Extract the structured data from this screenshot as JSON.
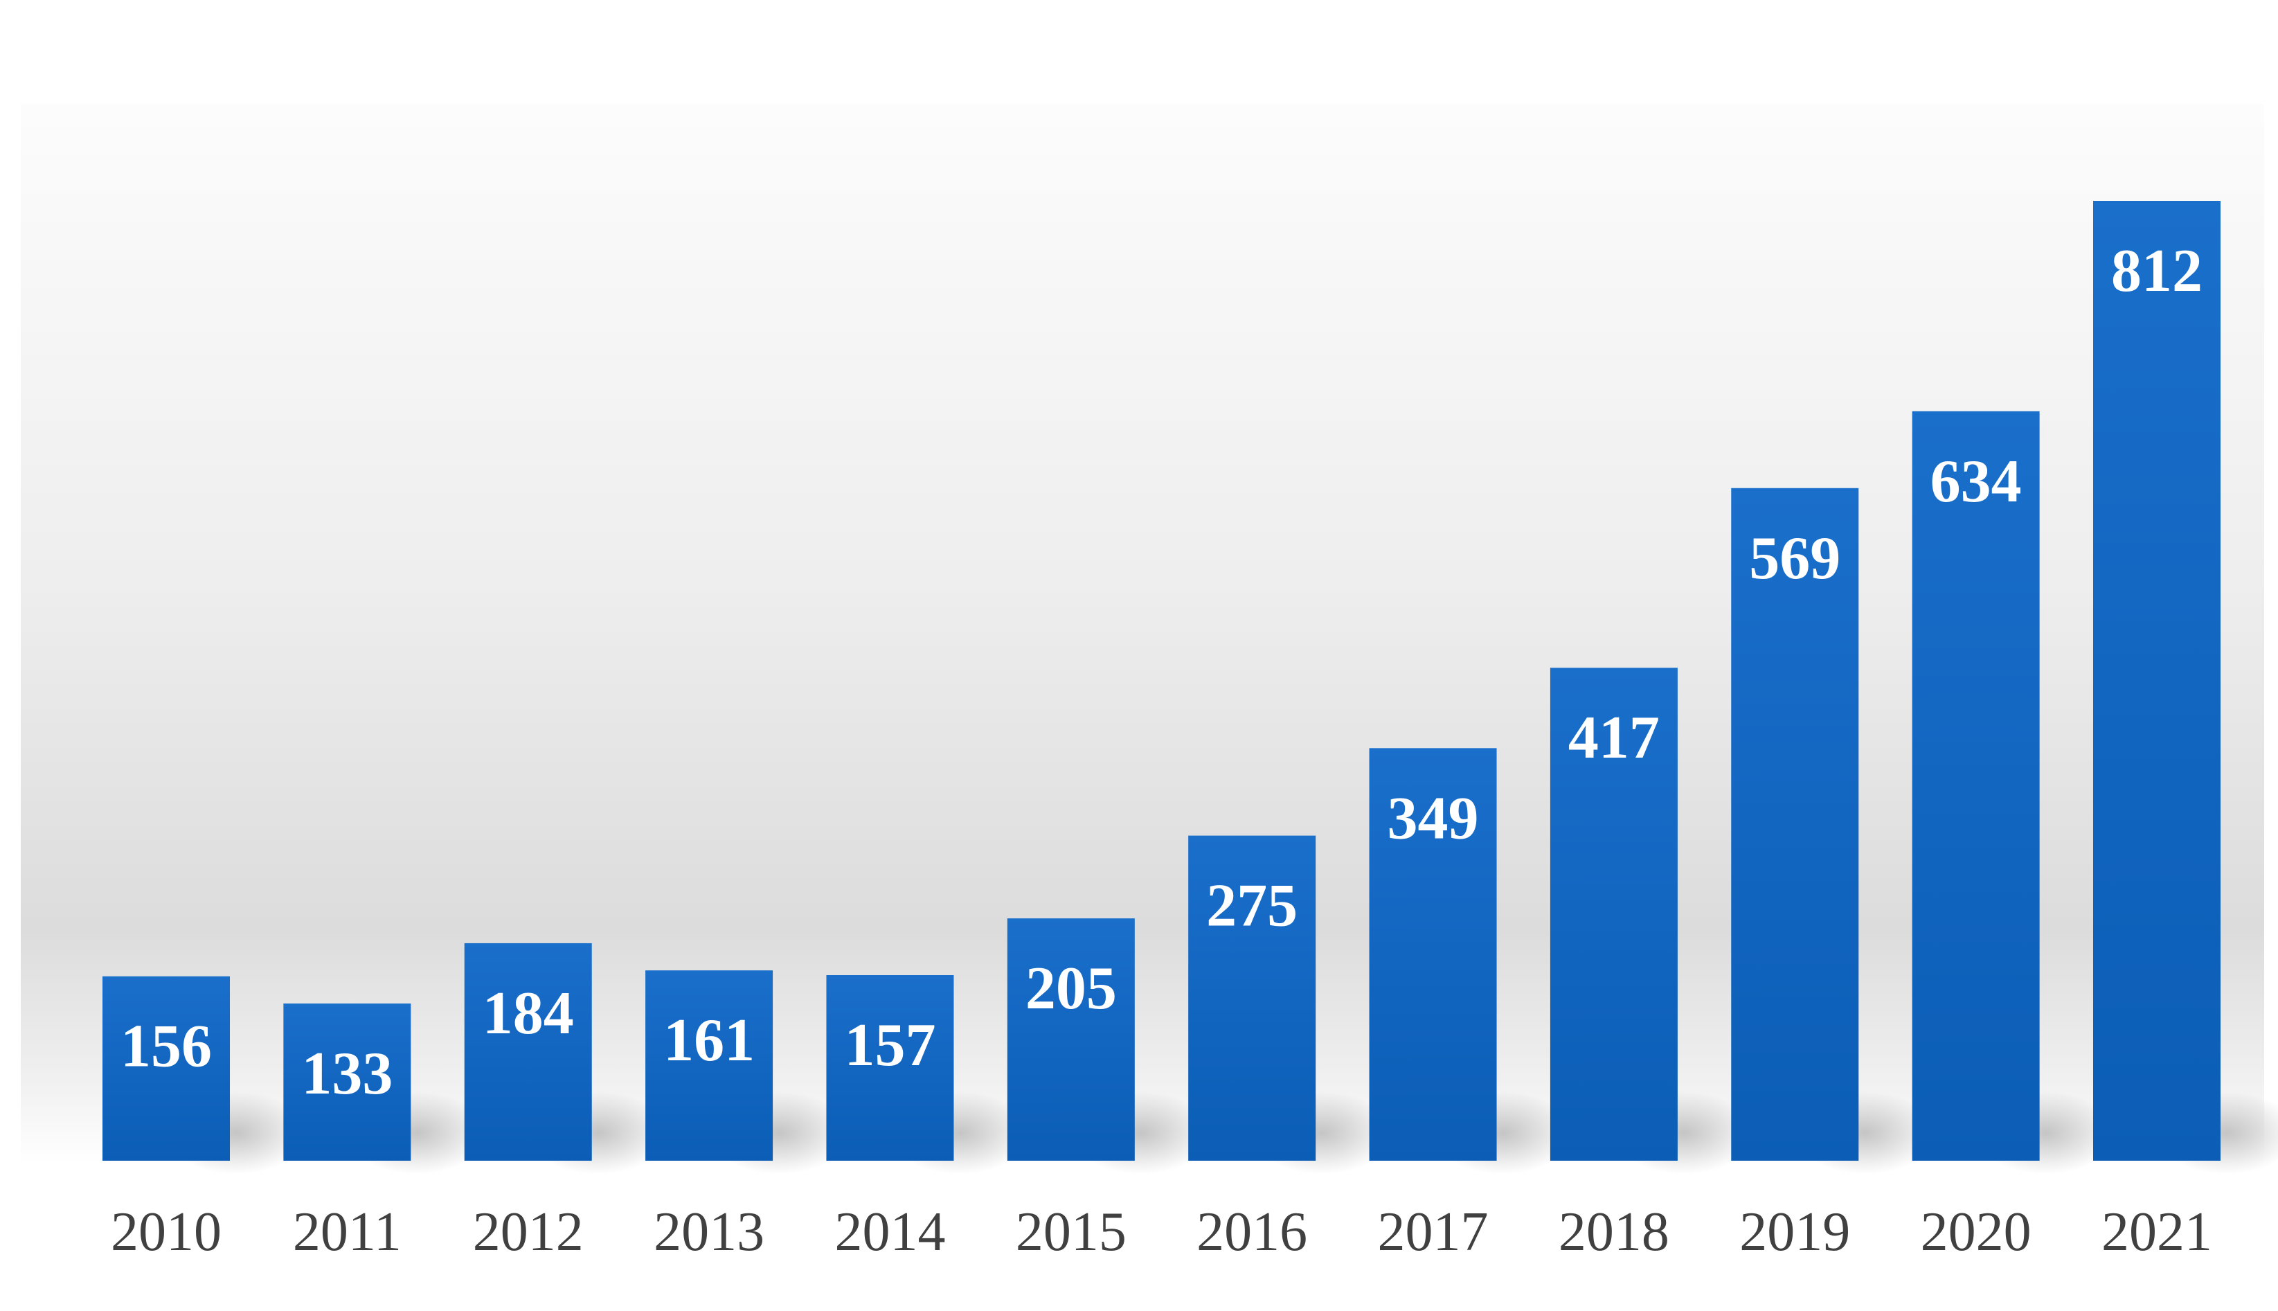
{
  "chart_data": {
    "type": "bar",
    "categories": [
      "2010",
      "2011",
      "2012",
      "2013",
      "2014",
      "2015",
      "2016",
      "2017",
      "2018",
      "2019",
      "2020",
      "2021"
    ],
    "values": [
      156,
      133,
      184,
      161,
      157,
      205,
      275,
      349,
      417,
      569,
      634,
      812
    ],
    "value_labels": [
      "156",
      "133",
      "184",
      "161",
      "157",
      "205",
      "275",
      "349",
      "417",
      "569",
      "634",
      "812"
    ],
    "ylim": [
      0,
      812
    ],
    "grid": false,
    "legend": "none",
    "data_labels": "inside-top"
  },
  "colors": {
    "bar_top": "#1a6fcb",
    "bar_bottom": "#0b5db5",
    "background_top": "#fcfcfc",
    "background_mid": "#dcdcdc",
    "value_label": "#ffffff",
    "category_label": "#404040"
  }
}
